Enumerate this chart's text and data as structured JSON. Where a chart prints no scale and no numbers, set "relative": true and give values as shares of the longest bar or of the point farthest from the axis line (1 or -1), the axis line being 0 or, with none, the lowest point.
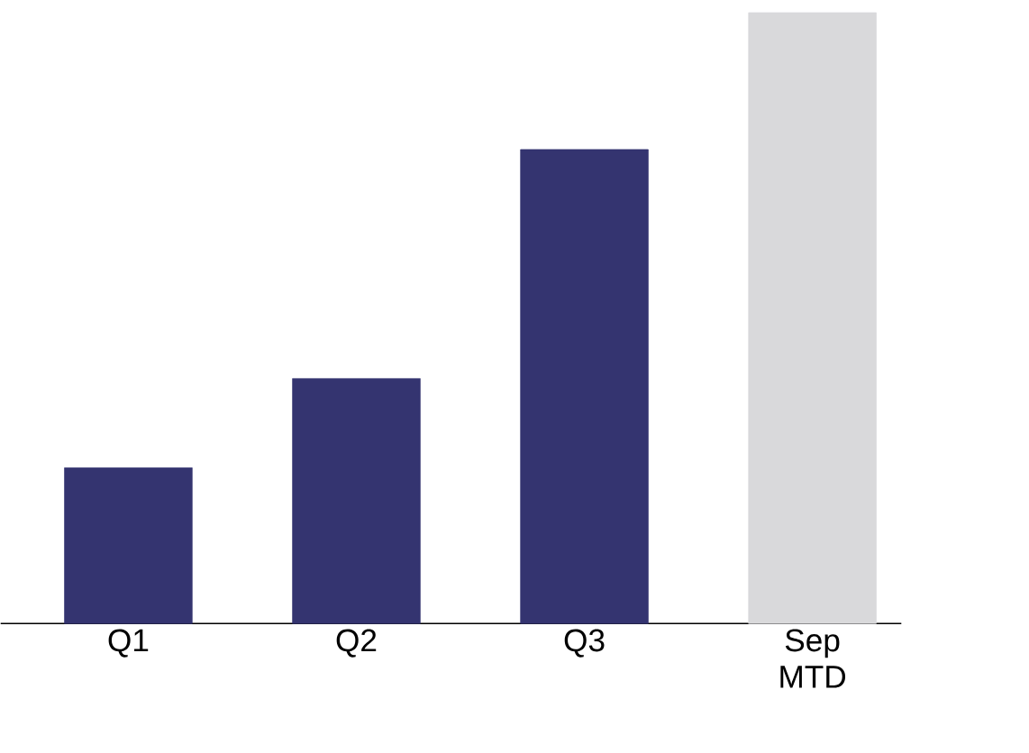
{
  "chart_data": {
    "type": "bar",
    "relative": true,
    "categories": [
      "Q1",
      "Q2",
      "Q3",
      "Sep MTD"
    ],
    "values": [
      0.255,
      0.401,
      0.776,
      1
    ],
    "colors": [
      "#343470",
      "#343470",
      "#343470",
      "#d9d9db"
    ]
  }
}
